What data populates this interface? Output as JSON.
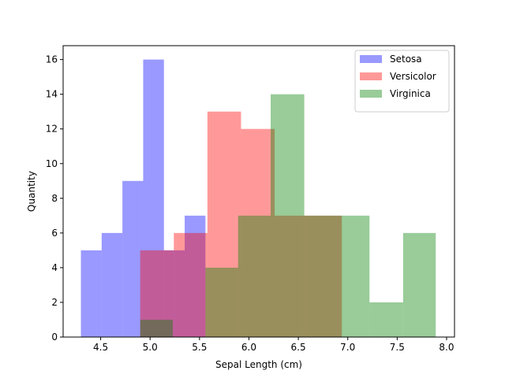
{
  "chart_data": {
    "type": "bar",
    "title": "",
    "xlabel": "Sepal Length (cm)",
    "ylabel": "Quantity",
    "xlim": [
      4.12,
      8.08
    ],
    "ylim": [
      0,
      16.8
    ],
    "xticks": [
      4.5,
      5.0,
      5.5,
      6.0,
      6.5,
      7.0,
      7.5,
      8.0
    ],
    "xtick_labels": [
      "4.5",
      "5.0",
      "5.5",
      "6.0",
      "6.5",
      "7.0",
      "7.5",
      "8.0"
    ],
    "yticks": [
      0,
      2,
      4,
      6,
      8,
      10,
      12,
      14,
      16
    ],
    "ytick_labels": [
      "0",
      "2",
      "4",
      "6",
      "8",
      "10",
      "12",
      "14",
      "16"
    ],
    "grid": false,
    "legend_position": "top-right",
    "series": [
      {
        "name": "Setosa",
        "color": "#0000ff",
        "opacity": 0.4,
        "bins": [
          4.3,
          4.51,
          4.72,
          4.93,
          5.14,
          5.35,
          5.56
        ],
        "values": [
          5,
          6,
          9,
          16,
          5,
          7
        ]
      },
      {
        "name": "Versicolor",
        "color": "#ff0000",
        "opacity": 0.4,
        "bins": [
          4.9,
          5.24,
          5.58,
          5.92,
          6.26,
          6.6,
          6.94
        ],
        "values": [
          5,
          6,
          13,
          12,
          7,
          7
        ]
      },
      {
        "name": "Virginica",
        "color": "#008000",
        "opacity": 0.4,
        "bins": [
          4.9,
          5.23,
          5.56,
          5.89,
          6.22,
          6.56,
          6.89,
          7.22,
          7.56,
          7.89
        ],
        "values": [
          1,
          0,
          4,
          7,
          14,
          7,
          7,
          2,
          6
        ]
      }
    ]
  }
}
